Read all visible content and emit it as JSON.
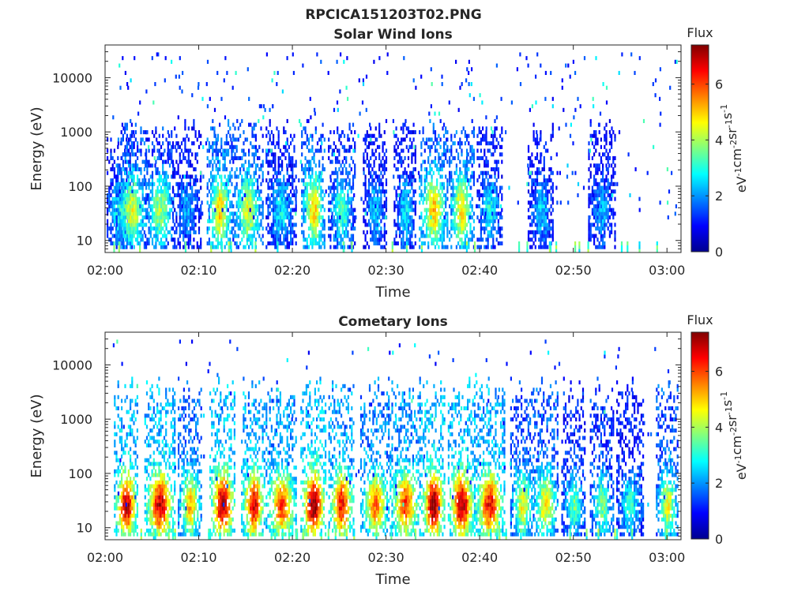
{
  "figure_title": "RPCICA151203T02.PNG",
  "colormap": {
    "name": "jet",
    "stops": [
      "#00008f",
      "#0000ff",
      "#0080ff",
      "#00ffff",
      "#80ff80",
      "#ffff00",
      "#ff8000",
      "#ff0000",
      "#800000"
    ]
  },
  "chart_data": [
    {
      "type": "heatmap",
      "title": "Solar Wind Ions",
      "xlabel": "Time",
      "ylabel": "Energy (eV)",
      "x_tick_labels": [
        "02:00",
        "02:10",
        "02:20",
        "02:30",
        "02:40",
        "02:50",
        "03:00"
      ],
      "x_tick_minutes": [
        0,
        10,
        20,
        30,
        40,
        50,
        60
      ],
      "xlim_minutes": [
        0,
        61.5
      ],
      "y_scale": "log",
      "y_tick_labels": [
        "10",
        "100",
        "1000",
        "10000"
      ],
      "y_tick_values": [
        10,
        100,
        1000,
        10000
      ],
      "ylim": [
        6,
        40000
      ],
      "colorbar": {
        "title": "Flux",
        "label": "eV^-1 cm^-2 sr^-1 s^-1",
        "range": [
          0,
          7.4
        ],
        "tick_labels": [
          "0",
          "2",
          "4",
          "6"
        ],
        "tick_values": [
          0,
          2,
          4,
          6
        ]
      },
      "bursts": [
        {
          "t": 1.5,
          "flux": 2.6
        },
        {
          "t": 2.8,
          "flux": 4.0
        },
        {
          "t": 5.8,
          "flux": 3.6
        },
        {
          "t": 8.7,
          "flux": 2.0
        },
        {
          "t": 12.2,
          "flux": 4.5
        },
        {
          "t": 15.2,
          "flux": 4.0
        },
        {
          "t": 18.8,
          "flux": 2.4
        },
        {
          "t": 22.2,
          "flux": 4.6
        },
        {
          "t": 25.2,
          "flux": 3.0
        },
        {
          "t": 28.8,
          "flux": 2.2
        },
        {
          "t": 32.0,
          "flux": 2.4
        },
        {
          "t": 35.0,
          "flux": 4.6
        },
        {
          "t": 38.0,
          "flux": 4.4
        },
        {
          "t": 41.0,
          "flux": 2.6
        },
        {
          "t": 46.5,
          "flux": 2.2
        },
        {
          "t": 53.0,
          "flux": 2.0
        }
      ]
    },
    {
      "type": "heatmap",
      "title": "Cometary Ions",
      "xlabel": "Time",
      "ylabel": "Energy (eV)",
      "x_tick_labels": [
        "02:00",
        "02:10",
        "02:20",
        "02:30",
        "02:40",
        "02:50",
        "03:00"
      ],
      "x_tick_minutes": [
        0,
        10,
        20,
        30,
        40,
        50,
        60
      ],
      "xlim_minutes": [
        0,
        61.5
      ],
      "y_scale": "log",
      "y_tick_labels": [
        "10",
        "100",
        "1000",
        "10000"
      ],
      "y_tick_values": [
        10,
        100,
        1000,
        10000
      ],
      "ylim": [
        6,
        40000
      ],
      "colorbar": {
        "title": "Flux",
        "label": "eV^-1 cm^-2 sr^-1 s^-1",
        "range": [
          0,
          7.4
        ],
        "tick_labels": [
          "0",
          "2",
          "4",
          "6"
        ],
        "tick_values": [
          0,
          2,
          4,
          6
        ]
      },
      "bursts": [
        {
          "t": 2.2,
          "flux": 6.4
        },
        {
          "t": 5.8,
          "flux": 6.3
        },
        {
          "t": 9.0,
          "flux": 4.8
        },
        {
          "t": 12.5,
          "flux": 6.6
        },
        {
          "t": 15.8,
          "flux": 6.2
        },
        {
          "t": 18.8,
          "flux": 5.6
        },
        {
          "t": 22.2,
          "flux": 6.8
        },
        {
          "t": 25.2,
          "flux": 6.0
        },
        {
          "t": 28.8,
          "flux": 5.2
        },
        {
          "t": 32.0,
          "flux": 5.6
        },
        {
          "t": 35.0,
          "flux": 6.8
        },
        {
          "t": 38.0,
          "flux": 6.6
        },
        {
          "t": 41.0,
          "flux": 6.0
        },
        {
          "t": 44.5,
          "flux": 4.2
        },
        {
          "t": 47.0,
          "flux": 4.4
        },
        {
          "t": 50.0,
          "flux": 3.2
        },
        {
          "t": 53.0,
          "flux": 3.4
        },
        {
          "t": 56.0,
          "flux": 2.8
        },
        {
          "t": 60.0,
          "flux": 4.2
        }
      ]
    }
  ]
}
